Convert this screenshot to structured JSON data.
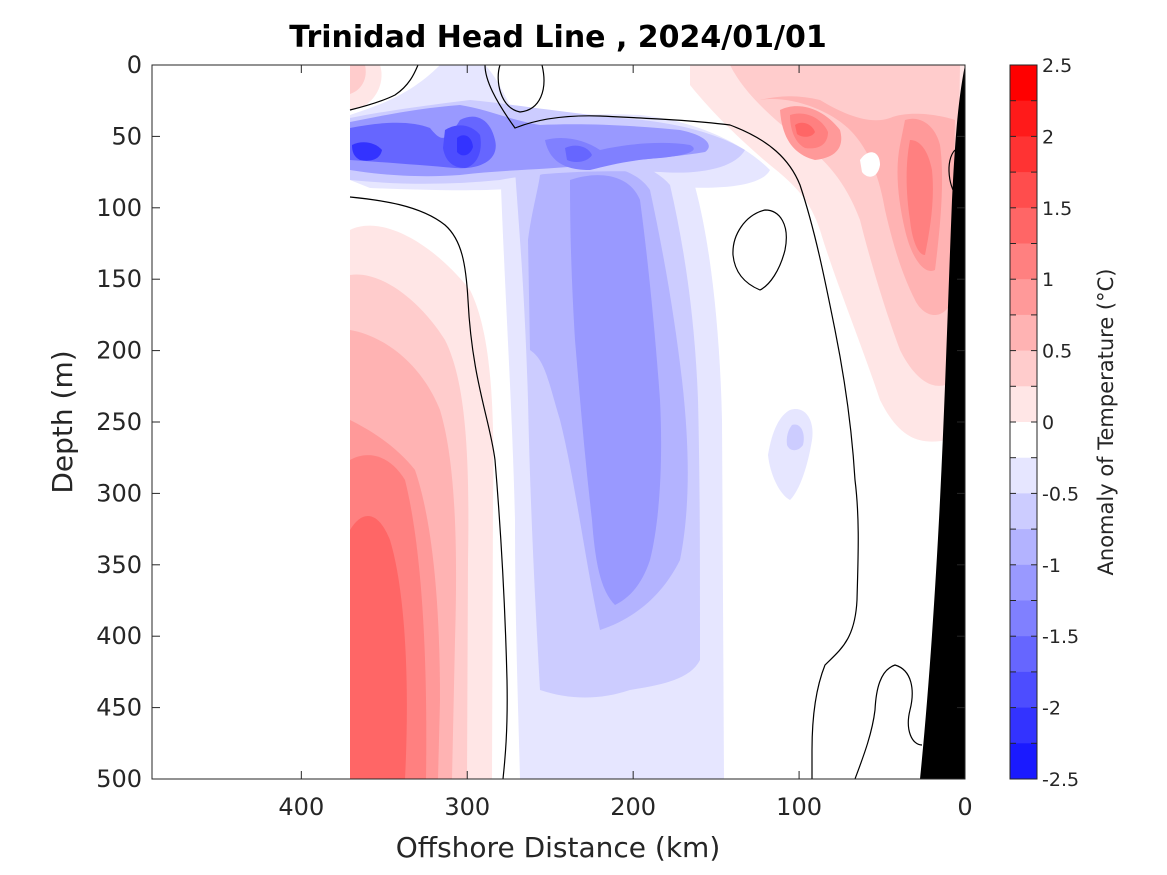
{
  "chart_data": {
    "type": "heatmap",
    "subtype": "filled-contour section",
    "title": "Trinidad Head Line , 2024/01/01",
    "xlabel": "Offshore Distance (km)",
    "ylabel": "Depth (m)",
    "xlim": [
      490,
      0
    ],
    "x_reversed": true,
    "ylim": [
      0,
      500
    ],
    "y_reversed": true,
    "x_ticks": [
      "400",
      "300",
      "200",
      "100",
      "0"
    ],
    "x_tick_values": [
      400,
      300,
      200,
      100,
      0
    ],
    "y_ticks": [
      "0",
      "50",
      "100",
      "150",
      "200",
      "250",
      "300",
      "350",
      "400",
      "450",
      "500"
    ],
    "y_tick_values": [
      0,
      50,
      100,
      150,
      200,
      250,
      300,
      350,
      400,
      450,
      500
    ],
    "grid": false,
    "data_extent_km": [
      0,
      370
    ],
    "bathymetry": "black seafloor wedge near 0-25 km",
    "colorbar": {
      "label": "Anomaly of Temperature (°C)",
      "ticks": [
        "2.5",
        "2",
        "1.5",
        "1",
        "0.5",
        "0",
        "-0.5",
        "-1",
        "-1.5",
        "-2",
        "-2.5"
      ],
      "levels": [
        2.5,
        2.25,
        2.0,
        1.75,
        1.5,
        1.25,
        1.0,
        0.75,
        0.5,
        0.25,
        0,
        -0.25,
        -0.5,
        -0.75,
        -1.0,
        -1.25,
        -1.5,
        -1.75,
        -2.0,
        -2.25,
        -2.5
      ],
      "colors": [
        "#ff0000",
        "#ff1a1a",
        "#ff3333",
        "#ff4d4d",
        "#ff6666",
        "#ff8080",
        "#ff9999",
        "#ffb3b3",
        "#ffcccc",
        "#ffe6e6",
        "#ffffff",
        "#e6e6ff",
        "#ccccff",
        "#b3b3ff",
        "#9999ff",
        "#8080ff",
        "#6666ff",
        "#4d4dff",
        "#3333ff",
        "#1a1aff"
      ]
    },
    "features": [
      {
        "name": "deep warm core",
        "x_range": [
          330,
          370
        ],
        "depth_range": [
          310,
          500
        ],
        "anomaly": 1.25
      },
      {
        "name": "upper warm layer offshore",
        "x_range": [
          300,
          370
        ],
        "depth_range": [
          120,
          500
        ],
        "anomaly": 0.5
      },
      {
        "name": "cold tongue",
        "x_range": [
          170,
          250
        ],
        "depth_range": [
          140,
          380
        ],
        "anomaly": -0.75
      },
      {
        "name": "subsurface cold band",
        "x_range": [
          150,
          370
        ],
        "depth_range": [
          40,
          90
        ],
        "anomaly": -1.75
      },
      {
        "name": "cold core min",
        "x": 300,
        "depth": 60,
        "anomaly": -2.0
      },
      {
        "name": "nearshore warm patch",
        "x": 95,
        "depth": 50,
        "anomaly": 1.25
      },
      {
        "name": "slope warm band",
        "x_range": [
          10,
          45
        ],
        "depth_range": [
          60,
          300
        ],
        "anomaly": 1.0
      }
    ]
  },
  "icons": {
    "seafloor": "bathymetry-wedge"
  },
  "colors": {
    "seafloor": "#000000",
    "zero_contour": "#000000",
    "axis": "#262626",
    "background": "#ffffff"
  }
}
